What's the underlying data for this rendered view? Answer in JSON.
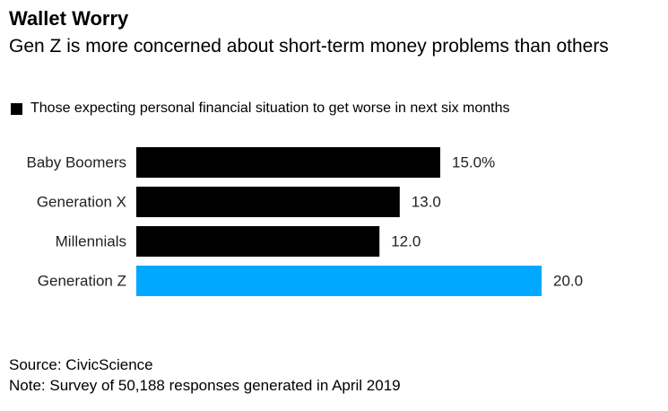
{
  "chart_data": {
    "type": "bar",
    "orientation": "horizontal",
    "title": "Wallet Worry",
    "subtitle": "Gen Z is more concerned about short-term money problems than others",
    "categories": [
      "Baby Boomers",
      "Generation X",
      "Millennials",
      "Generation Z"
    ],
    "series": [
      {
        "name": "Those expecting personal financial situation to get worse in next six months",
        "values": [
          15.0,
          13.0,
          12.0,
          20.0
        ]
      }
    ],
    "value_labels": [
      "15.0%",
      "13.0",
      "12.0",
      "20.0"
    ],
    "bar_colors": [
      "#000000",
      "#000000",
      "#000000",
      "#00a9ff"
    ],
    "xlim": [
      0,
      20
    ],
    "grid": false,
    "legend_position": "top-left"
  },
  "colors": {
    "legend_swatch": "#000000",
    "highlight": "#00a9ff",
    "default_bar": "#000000"
  },
  "source": "Source: CivicScience",
  "note": "Note: Survey of 50,188 responses generated in April 2019"
}
